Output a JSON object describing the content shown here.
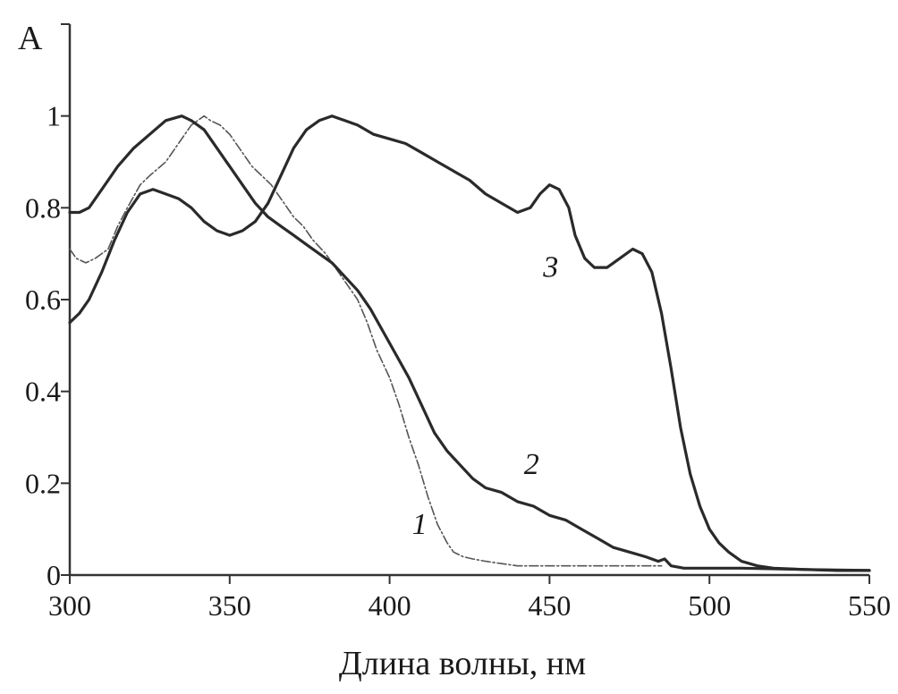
{
  "chart_data": {
    "type": "line",
    "title": "",
    "xlabel": "Длина волны, нм",
    "ylabel": "A",
    "xlim": [
      300,
      550
    ],
    "ylim": [
      0,
      1.2
    ],
    "x_ticks": [
      300,
      350,
      400,
      450,
      500,
      550
    ],
    "y_ticks": [
      0,
      0.2,
      0.4,
      0.6,
      0.8,
      1
    ],
    "x_tick_labels": [
      "300",
      "350",
      "400",
      "450",
      "500",
      "550"
    ],
    "y_tick_labels": [
      "0",
      "0.2",
      "0.4",
      "0.6",
      "0.8",
      "1"
    ],
    "grid": false,
    "legend": "none",
    "series": [
      {
        "label": "1",
        "label_position": [
          407,
          0.09
        ],
        "color": "#555555",
        "style": "dashed-thin",
        "points": [
          [
            300,
            0.71
          ],
          [
            302,
            0.69
          ],
          [
            305,
            0.68
          ],
          [
            308,
            0.69
          ],
          [
            312,
            0.71
          ],
          [
            315,
            0.76
          ],
          [
            318,
            0.8
          ],
          [
            322,
            0.85
          ],
          [
            325,
            0.87
          ],
          [
            330,
            0.9
          ],
          [
            333,
            0.93
          ],
          [
            336,
            0.96
          ],
          [
            338,
            0.98
          ],
          [
            340,
            0.99
          ],
          [
            342,
            1.0
          ],
          [
            344,
            0.99
          ],
          [
            347,
            0.98
          ],
          [
            350,
            0.96
          ],
          [
            353,
            0.93
          ],
          [
            357,
            0.89
          ],
          [
            360,
            0.87
          ],
          [
            363,
            0.85
          ],
          [
            367,
            0.81
          ],
          [
            370,
            0.78
          ],
          [
            373,
            0.76
          ],
          [
            376,
            0.73
          ],
          [
            380,
            0.7
          ],
          [
            383,
            0.67
          ],
          [
            386,
            0.64
          ],
          [
            390,
            0.6
          ],
          [
            393,
            0.55
          ],
          [
            396,
            0.49
          ],
          [
            400,
            0.43
          ],
          [
            403,
            0.37
          ],
          [
            406,
            0.3
          ],
          [
            409,
            0.24
          ],
          [
            412,
            0.17
          ],
          [
            415,
            0.11
          ],
          [
            418,
            0.07
          ],
          [
            420,
            0.05
          ],
          [
            423,
            0.04
          ],
          [
            426,
            0.035
          ],
          [
            430,
            0.03
          ],
          [
            435,
            0.025
          ],
          [
            440,
            0.02
          ],
          [
            450,
            0.02
          ],
          [
            460,
            0.02
          ],
          [
            470,
            0.02
          ],
          [
            480,
            0.02
          ],
          [
            485,
            0.02
          ]
        ]
      },
      {
        "label": "2",
        "label_position": [
          442,
          0.22
        ],
        "color": "#2a2a2a",
        "style": "solid",
        "points": [
          [
            300,
            0.79
          ],
          [
            303,
            0.79
          ],
          [
            306,
            0.8
          ],
          [
            310,
            0.84
          ],
          [
            315,
            0.89
          ],
          [
            320,
            0.93
          ],
          [
            325,
            0.96
          ],
          [
            330,
            0.99
          ],
          [
            335,
            1.0
          ],
          [
            338,
            0.99
          ],
          [
            342,
            0.97
          ],
          [
            346,
            0.93
          ],
          [
            350,
            0.89
          ],
          [
            354,
            0.85
          ],
          [
            358,
            0.81
          ],
          [
            362,
            0.78
          ],
          [
            366,
            0.76
          ],
          [
            370,
            0.74
          ],
          [
            374,
            0.72
          ],
          [
            378,
            0.7
          ],
          [
            382,
            0.68
          ],
          [
            386,
            0.65
          ],
          [
            390,
            0.62
          ],
          [
            394,
            0.58
          ],
          [
            398,
            0.53
          ],
          [
            402,
            0.48
          ],
          [
            406,
            0.43
          ],
          [
            410,
            0.37
          ],
          [
            414,
            0.31
          ],
          [
            418,
            0.27
          ],
          [
            422,
            0.24
          ],
          [
            426,
            0.21
          ],
          [
            430,
            0.19
          ],
          [
            435,
            0.18
          ],
          [
            440,
            0.16
          ],
          [
            445,
            0.15
          ],
          [
            450,
            0.13
          ],
          [
            455,
            0.12
          ],
          [
            460,
            0.1
          ],
          [
            465,
            0.08
          ],
          [
            470,
            0.06
          ],
          [
            475,
            0.05
          ],
          [
            480,
            0.04
          ],
          [
            484,
            0.03
          ],
          [
            486,
            0.035
          ],
          [
            488,
            0.02
          ],
          [
            492,
            0.015
          ],
          [
            500,
            0.015
          ],
          [
            510,
            0.015
          ],
          [
            530,
            0.012
          ],
          [
            550,
            0.01
          ]
        ]
      },
      {
        "label": "3",
        "label_position": [
          448,
          0.65
        ],
        "color": "#2a2a2a",
        "style": "solid",
        "points": [
          [
            300,
            0.55
          ],
          [
            303,
            0.57
          ],
          [
            306,
            0.6
          ],
          [
            310,
            0.66
          ],
          [
            314,
            0.73
          ],
          [
            318,
            0.79
          ],
          [
            322,
            0.83
          ],
          [
            326,
            0.84
          ],
          [
            330,
            0.83
          ],
          [
            334,
            0.82
          ],
          [
            338,
            0.8
          ],
          [
            342,
            0.77
          ],
          [
            346,
            0.75
          ],
          [
            350,
            0.74
          ],
          [
            354,
            0.75
          ],
          [
            358,
            0.77
          ],
          [
            362,
            0.81
          ],
          [
            366,
            0.87
          ],
          [
            370,
            0.93
          ],
          [
            374,
            0.97
          ],
          [
            378,
            0.99
          ],
          [
            382,
            1.0
          ],
          [
            386,
            0.99
          ],
          [
            390,
            0.98
          ],
          [
            395,
            0.96
          ],
          [
            400,
            0.95
          ],
          [
            405,
            0.94
          ],
          [
            410,
            0.92
          ],
          [
            415,
            0.9
          ],
          [
            420,
            0.88
          ],
          [
            425,
            0.86
          ],
          [
            430,
            0.83
          ],
          [
            435,
            0.81
          ],
          [
            440,
            0.79
          ],
          [
            444,
            0.8
          ],
          [
            447,
            0.83
          ],
          [
            450,
            0.85
          ],
          [
            453,
            0.84
          ],
          [
            456,
            0.8
          ],
          [
            458,
            0.74
          ],
          [
            461,
            0.69
          ],
          [
            464,
            0.67
          ],
          [
            468,
            0.67
          ],
          [
            472,
            0.69
          ],
          [
            476,
            0.71
          ],
          [
            479,
            0.7
          ],
          [
            482,
            0.66
          ],
          [
            485,
            0.57
          ],
          [
            488,
            0.45
          ],
          [
            491,
            0.32
          ],
          [
            494,
            0.22
          ],
          [
            497,
            0.15
          ],
          [
            500,
            0.1
          ],
          [
            503,
            0.07
          ],
          [
            506,
            0.05
          ],
          [
            510,
            0.03
          ],
          [
            515,
            0.02
          ],
          [
            520,
            0.015
          ],
          [
            530,
            0.012
          ],
          [
            540,
            0.01
          ],
          [
            550,
            0.01
          ]
        ]
      }
    ]
  }
}
